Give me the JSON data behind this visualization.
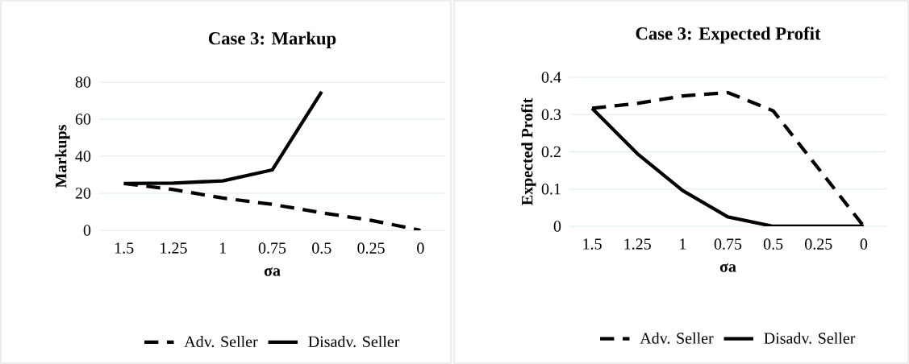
{
  "chart_data": [
    {
      "type": "line",
      "title": "Case 3: Markup",
      "xlabel": "σa",
      "ylabel": "Markups",
      "categories": [
        "1.5",
        "1.25",
        "1",
        "0.75",
        "0.5",
        "0.25",
        "0"
      ],
      "ylim": [
        0,
        80
      ],
      "yticks": [
        0,
        20,
        40,
        60,
        80
      ],
      "grid": "y",
      "legend": "bottom",
      "marker": "none",
      "series": [
        {
          "name": "Adv. Seller",
          "color": "#000000",
          "line_style": "dashed",
          "values": [
            25.3,
            22,
            17.4,
            14,
            9.5,
            5.4,
            0
          ]
        },
        {
          "name": "Disadv. Seller",
          "color": "#000000",
          "line_style": "solid",
          "values": [
            25.3,
            25.5,
            26.7,
            32.6,
            74.8,
            null,
            null
          ]
        }
      ]
    },
    {
      "type": "line",
      "title": "Case 3: Expected Profit",
      "xlabel": "σa",
      "ylabel": "Expected Profit",
      "categories": [
        "1.5",
        "1.25",
        "1",
        "0.75",
        "0.5",
        "0.25",
        "0"
      ],
      "ylim": [
        0,
        0.4
      ],
      "yticks": [
        0,
        0.1,
        0.2,
        0.3,
        0.4
      ],
      "grid": "y",
      "legend": "bottom",
      "marker": "none",
      "series": [
        {
          "name": "Adv. Seller",
          "color": "#000000",
          "line_style": "dashed",
          "values": [
            0.317,
            0.33,
            0.35,
            0.359,
            0.31,
            0.155,
            0
          ]
        },
        {
          "name": "Disadv. Seller",
          "color": "#000000",
          "line_style": "solid",
          "values": [
            0.317,
            0.195,
            0.096,
            0.025,
            0,
            0,
            0
          ]
        }
      ]
    }
  ]
}
